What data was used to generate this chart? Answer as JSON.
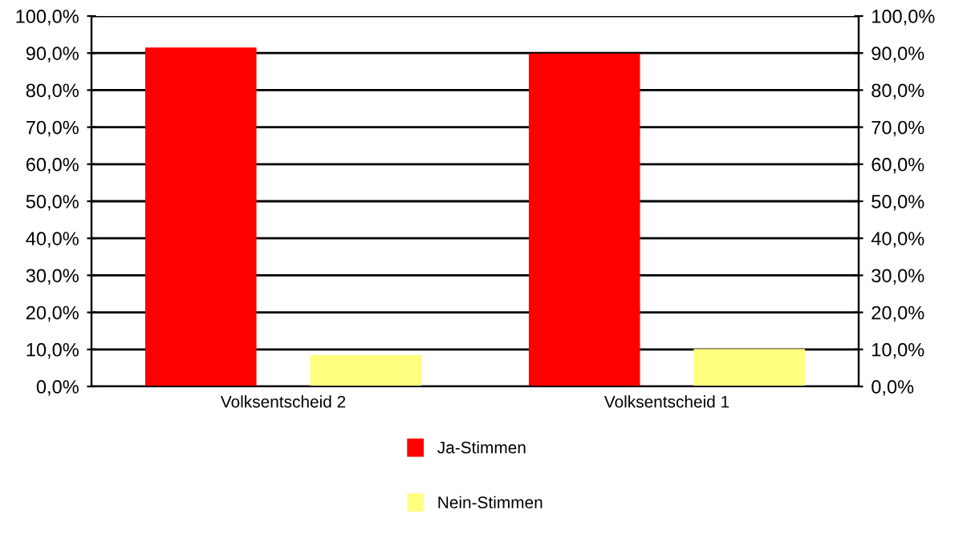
{
  "chart_data": {
    "type": "bar",
    "categories": [
      "Volksentscheid 2",
      "Volksentscheid 1"
    ],
    "series": [
      {
        "name": "Ja-Stimmen",
        "color": "#ff0000",
        "values": [
          91.5,
          89.9
        ]
      },
      {
        "name": "Nein-Stimmen",
        "color": "#ffff80",
        "values": [
          8.5,
          10.1
        ]
      }
    ],
    "ylim": [
      0,
      100
    ],
    "yticks": [
      {
        "value": 0,
        "label": "0,0%"
      },
      {
        "value": 10,
        "label": "10,0%"
      },
      {
        "value": 20,
        "label": "20,0%"
      },
      {
        "value": 30,
        "label": "30,0%"
      },
      {
        "value": 40,
        "label": "40,0%"
      },
      {
        "value": 50,
        "label": "50,0%"
      },
      {
        "value": 60,
        "label": "60,0%"
      },
      {
        "value": 70,
        "label": "70,0%"
      },
      {
        "value": 80,
        "label": "80,0%"
      },
      {
        "value": 90,
        "label": "90,0%"
      },
      {
        "value": 100,
        "label": "100,0%"
      }
    ],
    "y2lim": [
      0,
      100
    ],
    "y2ticks": [
      {
        "value": 0,
        "label": "0,0%"
      },
      {
        "value": 10,
        "label": "10,0%"
      },
      {
        "value": 20,
        "label": "20,0%"
      },
      {
        "value": 30,
        "label": "30,0%"
      },
      {
        "value": 40,
        "label": "40,0%"
      },
      {
        "value": 50,
        "label": "50,0%"
      },
      {
        "value": 60,
        "label": "60,0%"
      },
      {
        "value": 70,
        "label": "70,0%"
      },
      {
        "value": 80,
        "label": "80,0%"
      },
      {
        "value": 90,
        "label": "90,0%"
      },
      {
        "value": 100,
        "label": "100,0%"
      }
    ],
    "grid": true,
    "legend": "bottom"
  }
}
